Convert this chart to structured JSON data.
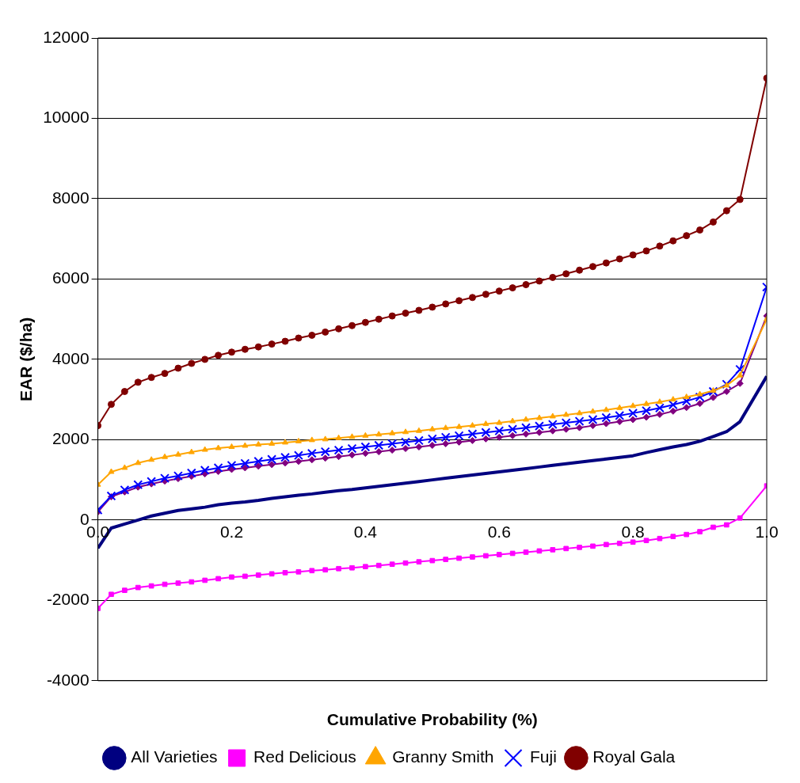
{
  "chart_data": {
    "type": "line",
    "xlabel": "Cumulative Probability (%)",
    "ylabel": "EAR ($/ha)",
    "x": [
      0,
      0.02,
      0.04,
      0.06,
      0.08,
      0.1,
      0.12,
      0.14,
      0.16,
      0.18,
      0.2,
      0.22,
      0.24,
      0.26,
      0.28,
      0.3,
      0.32,
      0.34,
      0.36,
      0.38,
      0.4,
      0.42,
      0.44,
      0.46,
      0.48,
      0.5,
      0.52,
      0.54,
      0.56,
      0.58,
      0.6,
      0.62,
      0.64,
      0.66,
      0.68,
      0.7,
      0.72,
      0.74,
      0.76,
      0.78,
      0.8,
      0.82,
      0.84,
      0.86,
      0.88,
      0.9,
      0.92,
      0.94,
      0.96,
      1.0
    ],
    "series": [
      {
        "name": "All Varieties",
        "color": "#000080",
        "marker": "none",
        "values": [
          -700,
          -200,
          -100,
          0,
          100,
          170,
          240,
          280,
          320,
          380,
          420,
          450,
          490,
          540,
          580,
          620,
          650,
          690,
          730,
          760,
          800,
          840,
          880,
          920,
          960,
          1000,
          1040,
          1080,
          1120,
          1160,
          1200,
          1240,
          1280,
          1320,
          1360,
          1400,
          1440,
          1480,
          1520,
          1560,
          1600,
          1680,
          1750,
          1820,
          1880,
          1960,
          2080,
          2200,
          2450,
          3580
        ]
      },
      {
        "name": "Red Delicious",
        "color": "#ff00ff",
        "marker": "square",
        "values": [
          -2200,
          -1850,
          -1750,
          -1680,
          -1640,
          -1600,
          -1570,
          -1540,
          -1500,
          -1460,
          -1420,
          -1400,
          -1370,
          -1340,
          -1310,
          -1290,
          -1260,
          -1240,
          -1210,
          -1190,
          -1160,
          -1130,
          -1100,
          -1070,
          -1040,
          -1010,
          -980,
          -950,
          -920,
          -890,
          -860,
          -830,
          -800,
          -770,
          -740,
          -710,
          -680,
          -650,
          -610,
          -580,
          -550,
          -510,
          -460,
          -410,
          -360,
          -290,
          -180,
          -120,
          50,
          850
        ]
      },
      {
        "name": "Granny Smith",
        "color": "#ffa500",
        "marker": "triangle",
        "values": [
          880,
          1200,
          1300,
          1420,
          1500,
          1570,
          1630,
          1690,
          1750,
          1790,
          1820,
          1850,
          1880,
          1900,
          1930,
          1960,
          1990,
          2010,
          2040,
          2070,
          2100,
          2130,
          2160,
          2190,
          2220,
          2260,
          2290,
          2320,
          2350,
          2390,
          2420,
          2460,
          2500,
          2540,
          2580,
          2620,
          2660,
          2700,
          2740,
          2790,
          2840,
          2890,
          2940,
          3000,
          3060,
          3130,
          3220,
          3350,
          3600,
          5000
        ]
      },
      {
        "name": "Fuji",
        "color": "#0000ff",
        "marker": "cross",
        "values": [
          250,
          600,
          750,
          880,
          960,
          1040,
          1100,
          1170,
          1240,
          1300,
          1360,
          1410,
          1460,
          1510,
          1560,
          1610,
          1660,
          1700,
          1740,
          1780,
          1820,
          1860,
          1900,
          1940,
          1980,
          2020,
          2060,
          2100,
          2140,
          2180,
          2220,
          2260,
          2300,
          2340,
          2380,
          2420,
          2460,
          2500,
          2550,
          2600,
          2660,
          2720,
          2790,
          2870,
          2960,
          3060,
          3200,
          3380,
          3750,
          5800
        ]
      },
      {
        "color": "#800080",
        "marker": "diamond",
        "values": [
          200,
          580,
          700,
          820,
          900,
          970,
          1030,
          1090,
          1150,
          1210,
          1260,
          1300,
          1340,
          1380,
          1420,
          1460,
          1500,
          1540,
          1580,
          1620,
          1660,
          1700,
          1740,
          1780,
          1820,
          1860,
          1900,
          1940,
          1980,
          2020,
          2060,
          2100,
          2140,
          2180,
          2220,
          2260,
          2300,
          2350,
          2400,
          2450,
          2500,
          2560,
          2630,
          2710,
          2800,
          2900,
          3050,
          3200,
          3400,
          5080
        ]
      },
      {
        "name": "Royal Gala",
        "color": "#800000",
        "marker": "circle",
        "values": [
          2350,
          2880,
          3200,
          3430,
          3550,
          3650,
          3780,
          3900,
          4000,
          4100,
          4180,
          4250,
          4310,
          4380,
          4450,
          4530,
          4600,
          4680,
          4760,
          4840,
          4920,
          5000,
          5080,
          5150,
          5220,
          5300,
          5380,
          5460,
          5540,
          5620,
          5700,
          5780,
          5860,
          5950,
          6040,
          6130,
          6220,
          6310,
          6400,
          6500,
          6600,
          6700,
          6820,
          6950,
          7080,
          7220,
          7420,
          7700,
          7980,
          11000
        ]
      }
    ],
    "xlim": [
      0,
      1
    ],
    "xticks": [
      {
        "value": 0,
        "label": "0.0"
      },
      {
        "value": 0.2,
        "label": "0.2"
      },
      {
        "value": 0.4,
        "label": "0.4"
      },
      {
        "value": 0.6,
        "label": "0.6"
      },
      {
        "value": 0.8,
        "label": "0.8"
      },
      {
        "value": 1,
        "label": "1.0"
      }
    ],
    "ylim": [
      -4000,
      12000
    ],
    "yticks": [
      -4000,
      -2000,
      0,
      2000,
      4000,
      6000,
      8000,
      10000,
      12000
    ],
    "grid": "y",
    "legend": "bottom"
  }
}
